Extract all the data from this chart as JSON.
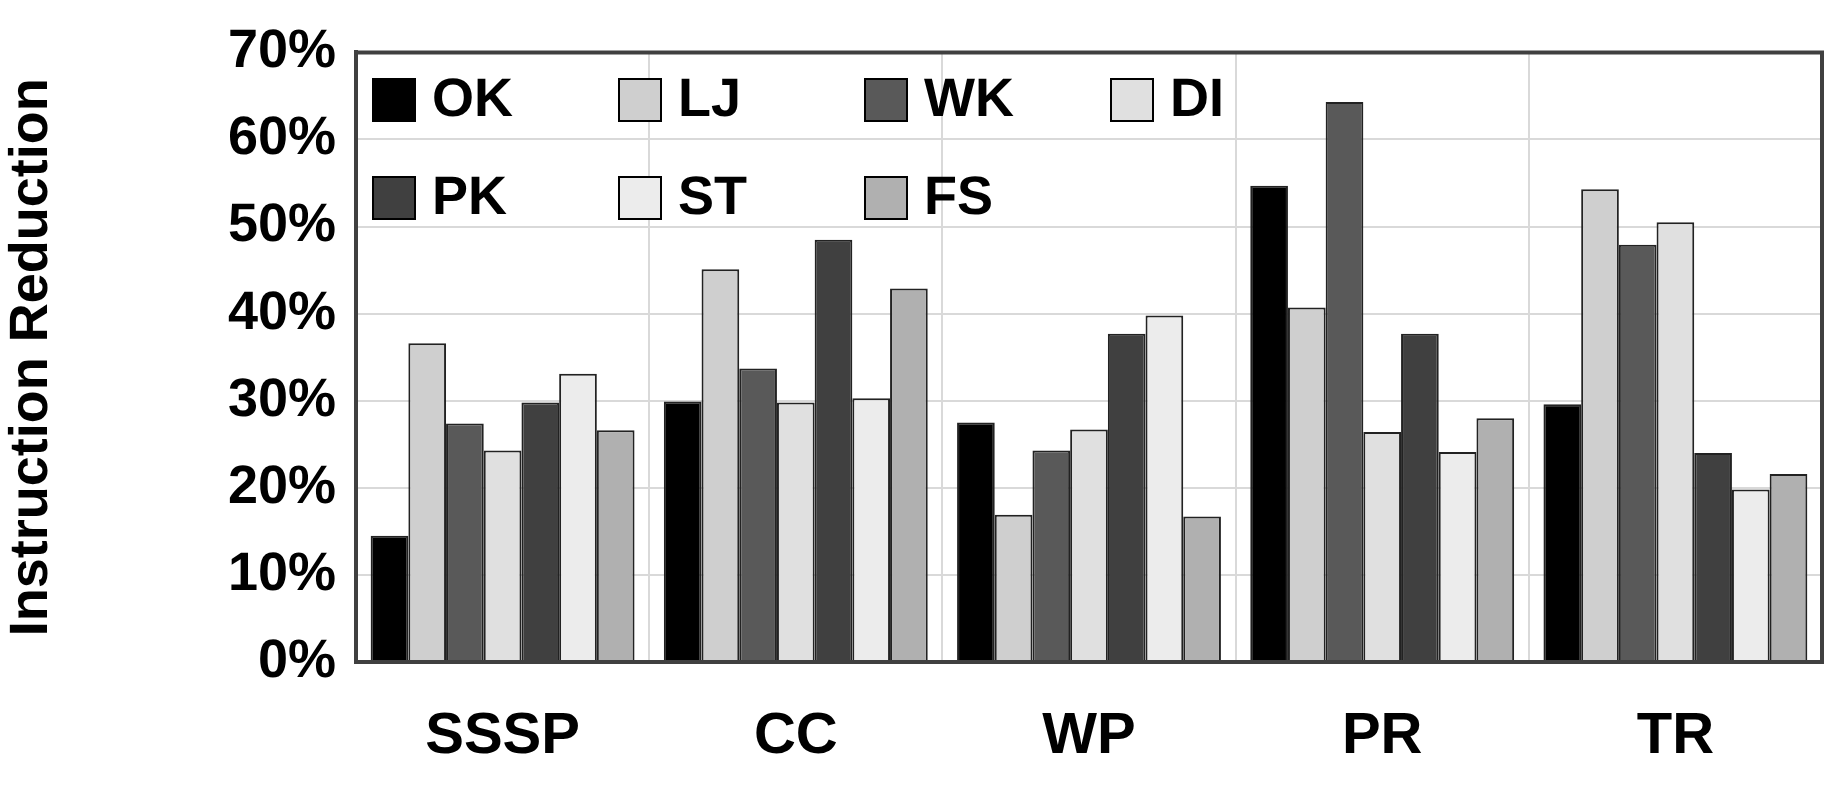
{
  "chart_data": {
    "type": "bar",
    "ylabel": "Instruction Reduction",
    "categories": [
      "SSSP",
      "CC",
      "WP",
      "PR",
      "TR"
    ],
    "series": [
      {
        "name": "OK",
        "color": "#000000",
        "values": [
          14.5,
          29.9,
          27.5,
          54.7,
          29.6
        ]
      },
      {
        "name": "LJ",
        "color": "#cfcfcf",
        "values": [
          36.6,
          45.1,
          16.9,
          40.7,
          54.3
        ]
      },
      {
        "name": "WK",
        "color": "#595959",
        "values": [
          27.4,
          33.7,
          24.3,
          64.3,
          47.9
        ]
      },
      {
        "name": "DI",
        "color": "#e0e0e0",
        "values": [
          24.3,
          29.8,
          26.7,
          26.4,
          50.5
        ]
      },
      {
        "name": "PK",
        "color": "#404040",
        "values": [
          29.8,
          48.5,
          37.7,
          37.7,
          24.0
        ]
      },
      {
        "name": "ST",
        "color": "#ececec",
        "values": [
          33.1,
          30.3,
          39.8,
          24.1,
          19.8
        ]
      },
      {
        "name": "FS",
        "color": "#b0b0b0",
        "values": [
          26.6,
          42.9,
          16.7,
          28.0,
          21.6
        ]
      }
    ],
    "ylim": [
      0,
      70
    ],
    "yticks": [
      {
        "value": 0,
        "label": "0%"
      },
      {
        "value": 10,
        "label": "10%"
      },
      {
        "value": 20,
        "label": "20%"
      },
      {
        "value": 30,
        "label": "30%"
      },
      {
        "value": 40,
        "label": "40%"
      },
      {
        "value": 50,
        "label": "50%"
      },
      {
        "value": 60,
        "label": "60%"
      },
      {
        "value": 70,
        "label": "70%"
      }
    ],
    "grid": true,
    "legend": "top left"
  }
}
